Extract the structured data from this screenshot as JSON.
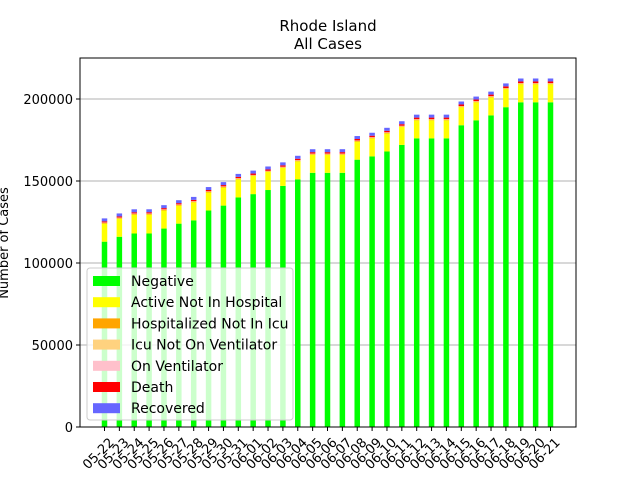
{
  "chart_data": {
    "type": "bar",
    "stacked": true,
    "title": "Rhode Island",
    "subtitle": "All Cases",
    "xlabel": "",
    "ylabel": "Number of Cases",
    "ylim": [
      0,
      225000
    ],
    "yticks": [
      0,
      50000,
      100000,
      150000,
      200000
    ],
    "ytick_labels": [
      "0",
      "50000",
      "100000",
      "150000",
      "200000"
    ],
    "grid": "horizontal",
    "legend_position": "lower-left",
    "categories": [
      "05-22",
      "05-23",
      "05-24",
      "05-25",
      "05-26",
      "05-27",
      "05-28",
      "05-29",
      "05-30",
      "05-31",
      "06-01",
      "06-02",
      "06-03",
      "06-04",
      "06-05",
      "06-06",
      "06-07",
      "06-08",
      "06-09",
      "06-10",
      "06-11",
      "06-12",
      "06-13",
      "06-14",
      "06-15",
      "06-16",
      "06-17",
      "06-18",
      "06-19",
      "06-20",
      "06-21"
    ],
    "series": [
      {
        "name": "Negative",
        "color": "#00ff00",
        "values": [
          113000,
          116000,
          118000,
          118000,
          121000,
          124000,
          126000,
          132000,
          135000,
          140000,
          142000,
          144500,
          147000,
          151000,
          155000,
          155000,
          155000,
          163000,
          165000,
          168000,
          172000,
          176000,
          176000,
          176000,
          184000,
          187000,
          190000,
          195000,
          198000,
          198000,
          198000
        ]
      },
      {
        "name": "Active Not In Hospital",
        "color": "#ffff00",
        "values": [
          11000,
          11000,
          11500,
          11500,
          11000,
          11000,
          11000,
          11000,
          11000,
          11000,
          11000,
          11000,
          11000,
          11000,
          11000,
          11000,
          11000,
          11000,
          11000,
          11000,
          11000,
          11000,
          11000,
          11000,
          11000,
          11000,
          11000,
          11000,
          11000,
          11000,
          11000
        ]
      },
      {
        "name": "Hospitalized Not In Icu",
        "color": "#ffa500",
        "values": [
          400,
          400,
          400,
          400,
          400,
          400,
          400,
          400,
          400,
          400,
          400,
          400,
          400,
          400,
          400,
          400,
          400,
          400,
          400,
          400,
          400,
          400,
          400,
          400,
          400,
          400,
          400,
          400,
          400,
          400,
          400
        ]
      },
      {
        "name": "Icu Not On Ventilator",
        "color": "#ffd27f",
        "values": [
          200,
          200,
          200,
          200,
          200,
          200,
          200,
          200,
          200,
          200,
          200,
          200,
          200,
          200,
          200,
          200,
          200,
          200,
          200,
          200,
          200,
          200,
          200,
          200,
          200,
          200,
          200,
          200,
          200,
          200,
          200
        ]
      },
      {
        "name": "On Ventilator",
        "color": "#ffc0cb",
        "values": [
          100,
          100,
          100,
          100,
          100,
          100,
          100,
          100,
          100,
          100,
          100,
          100,
          100,
          100,
          100,
          100,
          100,
          100,
          100,
          100,
          100,
          100,
          100,
          100,
          100,
          100,
          100,
          100,
          100,
          100,
          100
        ]
      },
      {
        "name": "Death",
        "color": "#ff0000",
        "values": [
          700,
          720,
          740,
          760,
          770,
          790,
          800,
          810,
          820,
          830,
          840,
          850,
          860,
          870,
          880,
          890,
          900,
          910,
          920,
          930,
          940,
          950,
          960,
          960,
          970,
          980,
          990,
          1000,
          1000,
          1010,
          1010
        ]
      },
      {
        "name": "Recovered",
        "color": "#6666ff",
        "values": [
          1800,
          1800,
          1800,
          1800,
          1800,
          1800,
          1800,
          1800,
          1800,
          1800,
          1800,
          1800,
          1800,
          1800,
          1800,
          1800,
          1800,
          1800,
          1800,
          1800,
          1800,
          1800,
          1800,
          1800,
          1800,
          1800,
          1800,
          1800,
          1800,
          1800,
          1800
        ]
      }
    ]
  }
}
